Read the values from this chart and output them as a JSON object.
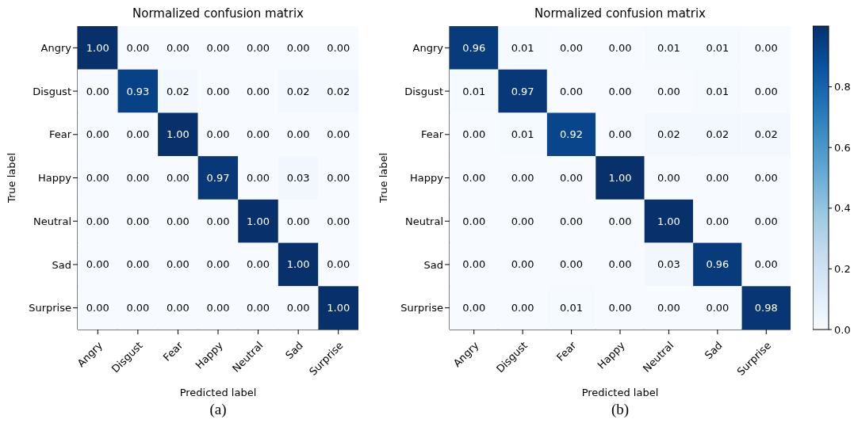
{
  "chart_data": [
    {
      "type": "heatmap",
      "title": "Normalized confusion matrix",
      "xlabel": "Predicted label",
      "ylabel": "True label",
      "annotations": [
        "(a)"
      ],
      "data_labels": true,
      "categories": [
        "Angry",
        "Disgust",
        "Fear",
        "Happy",
        "Neutral",
        "Sad",
        "Surprise"
      ],
      "y_categories": [
        "Angry",
        "Disgust",
        "Fear",
        "Happy",
        "Neutral",
        "Sad",
        "Surprise"
      ],
      "cells": [
        [
          1.0,
          0.0,
          0.0,
          0.0,
          0.0,
          0.0,
          0.0
        ],
        [
          0.0,
          0.93,
          0.02,
          0.0,
          0.0,
          0.02,
          0.02
        ],
        [
          0.0,
          0.0,
          1.0,
          0.0,
          0.0,
          0.0,
          0.0
        ],
        [
          0.0,
          0.0,
          0.0,
          0.97,
          0.0,
          0.03,
          0.0
        ],
        [
          0.0,
          0.0,
          0.0,
          0.0,
          1.0,
          0.0,
          0.0
        ],
        [
          0.0,
          0.0,
          0.0,
          0.0,
          0.0,
          1.0,
          0.0
        ],
        [
          0.0,
          0.0,
          0.0,
          0.0,
          0.0,
          0.0,
          1.0
        ]
      ],
      "cell_labels": [
        [
          "1.00",
          "0.00",
          "0.00",
          "0.00",
          "0.00",
          "0.00",
          "0.00"
        ],
        [
          "0.00",
          "0.93",
          "0.02",
          "0.00",
          "0.00",
          "0.02",
          "0.02"
        ],
        [
          "0.00",
          "0.00",
          "1.00",
          "0.00",
          "0.00",
          "0.00",
          "0.00"
        ],
        [
          "0.00",
          "0.00",
          "0.00",
          "0.97",
          "0.00",
          "0.03",
          "0.00"
        ],
        [
          "0.00",
          "0.00",
          "0.00",
          "0.00",
          "1.00",
          "0.00",
          "0.00"
        ],
        [
          "0.00",
          "0.00",
          "0.00",
          "0.00",
          "0.00",
          "1.00",
          "0.00"
        ],
        [
          "0.00",
          "0.00",
          "0.00",
          "0.00",
          "0.00",
          "0.00",
          "1.00"
        ]
      ]
    },
    {
      "type": "heatmap",
      "title": "Normalized confusion matrix",
      "xlabel": "Predicted label",
      "ylabel": "True label",
      "annotations": [
        "(b)"
      ],
      "data_labels": true,
      "categories": [
        "Angry",
        "Disgust",
        "Fear",
        "Happy",
        "Neutral",
        "Sad",
        "Surprise"
      ],
      "y_categories": [
        "Angry",
        "Disgust",
        "Fear",
        "Happy",
        "Neutral",
        "Sad",
        "Surprise"
      ],
      "cells": [
        [
          0.96,
          0.01,
          0.0,
          0.0,
          0.01,
          0.01,
          0.0
        ],
        [
          0.01,
          0.97,
          0.0,
          0.0,
          0.0,
          0.01,
          0.0
        ],
        [
          0.0,
          0.01,
          0.92,
          0.0,
          0.02,
          0.02,
          0.02
        ],
        [
          0.0,
          0.0,
          0.0,
          1.0,
          0.0,
          0.0,
          0.0
        ],
        [
          0.0,
          0.0,
          0.0,
          0.0,
          1.0,
          0.0,
          0.0
        ],
        [
          0.0,
          0.0,
          0.0,
          0.0,
          0.03,
          0.96,
          0.0
        ],
        [
          0.0,
          0.0,
          0.01,
          0.0,
          0.0,
          0.0,
          0.98
        ]
      ],
      "cell_labels": [
        [
          "0.96",
          "0.01",
          "0.00",
          "0.00",
          "0.01",
          "0.01",
          "0.00"
        ],
        [
          "0.01",
          "0.97",
          "0.00",
          "0.00",
          "0.00",
          "0.01",
          "0.00"
        ],
        [
          "0.00",
          "0.01",
          "0.92",
          "0.00",
          "0.02",
          "0.02",
          "0.02"
        ],
        [
          "0.00",
          "0.00",
          "0.00",
          "1.00",
          "0.00",
          "0.00",
          "0.00"
        ],
        [
          "0.00",
          "0.00",
          "0.00",
          "0.00",
          "1.00",
          "0.00",
          "0.00"
        ],
        [
          "0.00",
          "0.00",
          "0.00",
          "0.00",
          "0.03",
          "0.96",
          "0.00"
        ],
        [
          "0.00",
          "0.00",
          "0.01",
          "0.00",
          "0.00",
          "0.00",
          "0.98"
        ]
      ],
      "clim": [
        0,
        1
      ],
      "cticks": [
        {
          "value": 0,
          "label": "0.0"
        },
        {
          "value": 0.2,
          "label": "0.2"
        },
        {
          "value": 0.4,
          "label": "0.4"
        },
        {
          "value": 0.6,
          "label": "0.6"
        },
        {
          "value": 0.8,
          "label": "0.8"
        }
      ]
    }
  ]
}
